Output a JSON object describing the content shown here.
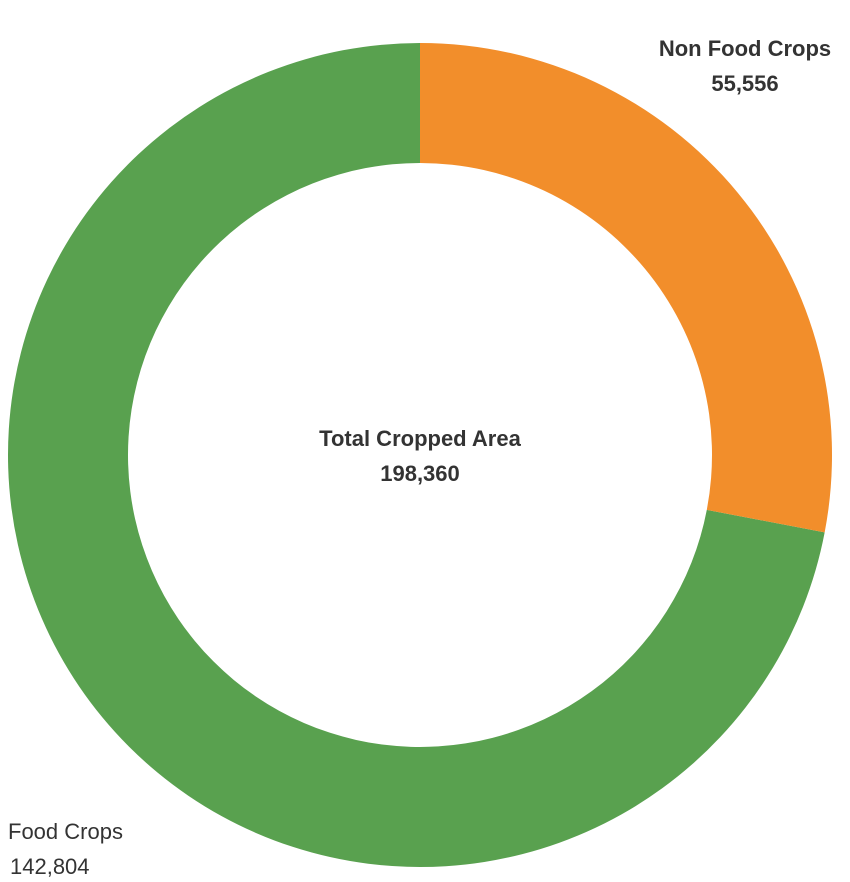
{
  "chart_data": {
    "type": "donut",
    "categories": [
      "Non Food Crops",
      "Food Crops"
    ],
    "values": [
      55556,
      142804
    ],
    "value_labels": [
      "55,556",
      "142,804"
    ],
    "colors": [
      "#f28e2b",
      "#59a14f"
    ],
    "center_title": "Total Cropped Area",
    "total": {
      "value": 198360,
      "label": "198,360"
    }
  }
}
